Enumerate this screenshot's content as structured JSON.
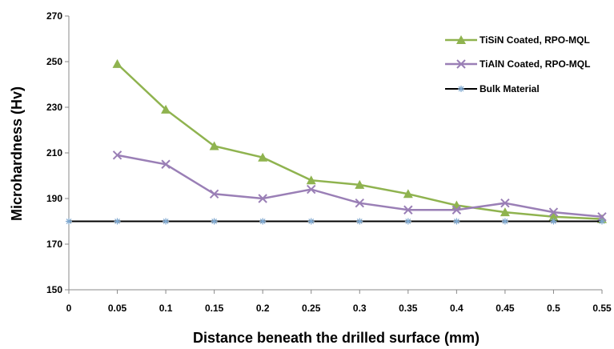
{
  "chart_data": {
    "type": "line",
    "xlabel": "Distance beneath the drilled surface (mm)",
    "ylabel": "Microhardness (Hv)",
    "xlim": [
      0,
      0.55
    ],
    "ylim": [
      150,
      270
    ],
    "x_ticks": [
      "0",
      "0.05",
      "0.1",
      "0.15",
      "0.2",
      "0.25",
      "0.3",
      "0.35",
      "0.4",
      "0.45",
      "0.5",
      "0.55"
    ],
    "y_ticks": [
      "150",
      "170",
      "190",
      "210",
      "230",
      "250",
      "270"
    ],
    "grid": false,
    "legend_position": "top-right",
    "series": [
      {
        "name": "TiSiN Coated, RPO-MQL",
        "color": "#8fb34f",
        "marker": "triangle",
        "x": [
          0.05,
          0.1,
          0.15,
          0.2,
          0.25,
          0.3,
          0.35,
          0.4,
          0.45,
          0.5,
          0.55
        ],
        "values": [
          249,
          229,
          213,
          208,
          198,
          196,
          192,
          187,
          184,
          182,
          181
        ]
      },
      {
        "name": "TiAlN Coated, RPO-MQL",
        "color": "#9a7fb6",
        "marker": "x",
        "x": [
          0.05,
          0.1,
          0.15,
          0.2,
          0.25,
          0.3,
          0.35,
          0.4,
          0.45,
          0.5,
          0.55
        ],
        "values": [
          209,
          205,
          192,
          190,
          194,
          188,
          185,
          185,
          188,
          184,
          182
        ]
      },
      {
        "name": "Bulk Material",
        "color": "#000000",
        "marker_color": "#7da7cf",
        "marker": "star",
        "x": [
          0,
          0.05,
          0.1,
          0.15,
          0.2,
          0.25,
          0.3,
          0.35,
          0.4,
          0.45,
          0.5,
          0.55
        ],
        "values": [
          180,
          180,
          180,
          180,
          180,
          180,
          180,
          180,
          180,
          180,
          180,
          180
        ]
      }
    ]
  }
}
